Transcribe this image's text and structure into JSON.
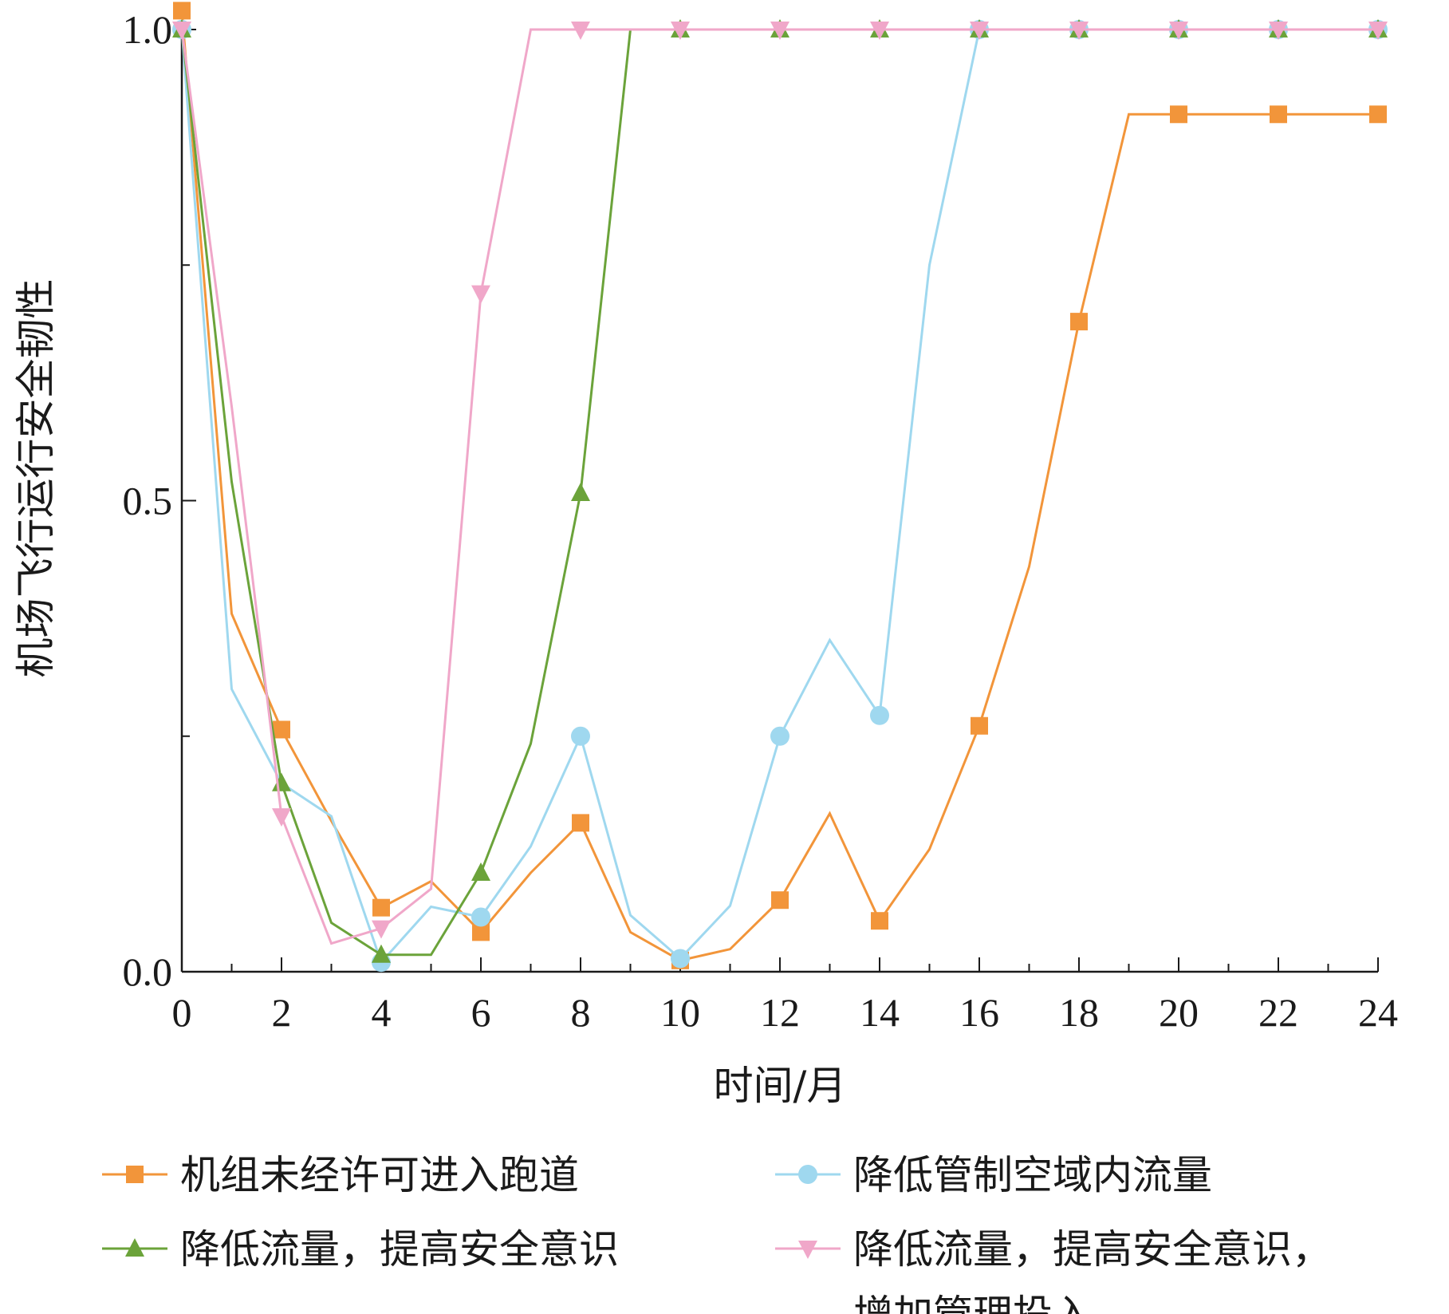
{
  "chart_data": {
    "type": "line",
    "xlabel": "时间/月",
    "ylabel": "机场飞行运行安全韧性",
    "xlim": [
      0,
      24
    ],
    "ylim": [
      0,
      1
    ],
    "x_ticks": [
      "0",
      "2",
      "4",
      "6",
      "8",
      "10",
      "12",
      "14",
      "16",
      "18",
      "20",
      "22",
      "24"
    ],
    "y_ticks": [
      "0.0",
      "0.5",
      "1.0"
    ],
    "grid": false,
    "legend_position": "bottom",
    "series": [
      {
        "name": "机组未经许可进入跑道",
        "color": "#f2953a",
        "marker": "square",
        "x": [
          0,
          1,
          2,
          3,
          4,
          5,
          6,
          7,
          8,
          9,
          10,
          11,
          12,
          13,
          14,
          15,
          16,
          17,
          18,
          19,
          20,
          21,
          22,
          23,
          24
        ],
        "y": [
          1.02,
          0.38,
          0.257,
          0.16,
          0.068,
          0.096,
          0.042,
          0.105,
          0.158,
          0.042,
          0.012,
          0.024,
          0.076,
          0.168,
          0.054,
          0.13,
          0.261,
          0.43,
          0.69,
          0.91,
          0.91,
          0.91,
          0.91,
          0.91,
          0.91
        ],
        "marker_x": [
          0,
          2,
          4,
          6,
          8,
          10,
          12,
          14,
          16,
          18,
          20,
          22,
          24
        ]
      },
      {
        "name": "降低管制空域内流量",
        "color": "#9fd8ef",
        "marker": "circle",
        "x": [
          0,
          1,
          2,
          3,
          4,
          5,
          6,
          7,
          8,
          9,
          10,
          11,
          12,
          13,
          14,
          15,
          16,
          17,
          18,
          19,
          20,
          21,
          22,
          23,
          24
        ],
        "y": [
          1.0,
          0.3,
          0.2,
          0.165,
          0.01,
          0.069,
          0.058,
          0.133,
          0.25,
          0.06,
          0.014,
          0.07,
          0.25,
          0.352,
          0.272,
          0.75,
          1.0,
          1.0,
          1.0,
          1.0,
          1.0,
          1.0,
          1.0,
          1.0,
          1.0
        ],
        "marker_x": [
          0,
          4,
          6,
          8,
          10,
          12,
          14,
          16,
          18,
          20,
          22,
          24
        ]
      },
      {
        "name": "降低流量，提高安全意识",
        "color": "#6ba33a",
        "marker": "triangle-up",
        "x": [
          0,
          1,
          2,
          3,
          4,
          5,
          6,
          7,
          8,
          9,
          10,
          11,
          12,
          13,
          14,
          15,
          16,
          17,
          18,
          19,
          20,
          21,
          22,
          23,
          24
        ],
        "y": [
          1.0,
          0.52,
          0.2,
          0.052,
          0.018,
          0.018,
          0.105,
          0.242,
          0.508,
          1.0,
          1.0,
          1.0,
          1.0,
          1.0,
          1.0,
          1.0,
          1.0,
          1.0,
          1.0,
          1.0,
          1.0,
          1.0,
          1.0,
          1.0,
          1.0
        ],
        "marker_x": [
          0,
          2,
          4,
          6,
          8,
          10,
          12,
          14,
          16,
          18,
          20,
          22,
          24
        ]
      },
      {
        "name": "降低流量，提高安全意识，增加管理投入",
        "name_lines": [
          "降低流量，提高安全意识，",
          "增加管理投入"
        ],
        "color": "#f0a7c9",
        "marker": "triangle-down",
        "x": [
          0,
          1,
          2,
          3,
          4,
          5,
          6,
          7,
          8,
          9,
          10,
          11,
          12,
          13,
          14,
          15,
          16,
          17,
          18,
          19,
          20,
          21,
          22,
          23,
          24
        ],
        "y": [
          1.0,
          0.6,
          0.165,
          0.03,
          0.046,
          0.088,
          0.72,
          1.0,
          1.0,
          1.0,
          1.0,
          1.0,
          1.0,
          1.0,
          1.0,
          1.0,
          1.0,
          1.0,
          1.0,
          1.0,
          1.0,
          1.0,
          1.0,
          1.0,
          1.0
        ],
        "marker_x": [
          0,
          2,
          4,
          6,
          8,
          10,
          12,
          14,
          16,
          18,
          20,
          22,
          24
        ]
      }
    ]
  }
}
